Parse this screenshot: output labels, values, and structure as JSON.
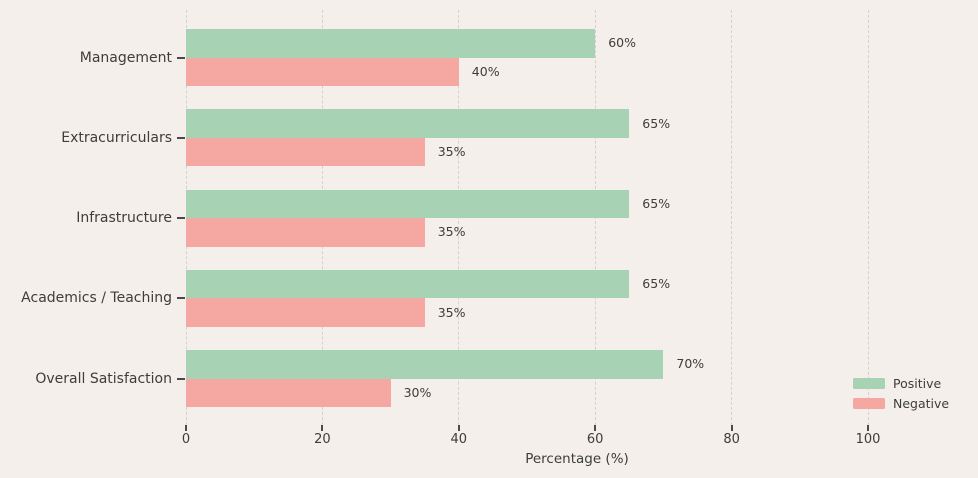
{
  "chart_data": {
    "type": "bar",
    "orientation": "horizontal",
    "categories": [
      "Management",
      "Extracurriculars",
      "Infrastructure",
      "Academics / Teaching",
      "Overall Satisfaction"
    ],
    "series": [
      {
        "name": "Positive",
        "color": "#a7d3b4",
        "values": [
          60,
          65,
          65,
          65,
          70
        ]
      },
      {
        "name": "Negative",
        "color": "#f5a7a2",
        "values": [
          40,
          35,
          35,
          35,
          30
        ]
      }
    ],
    "value_suffix": "%",
    "xlabel": "Percentage (%)",
    "x_ticks": [
      0,
      20,
      40,
      60,
      80,
      100
    ],
    "xlim": [
      0,
      114.7
    ],
    "grid": "vertical-dashed",
    "legend_position": "lower-right",
    "legend_entries": [
      "Positive",
      "Negative"
    ]
  },
  "colors": {
    "background": "#f4efeb",
    "grid": "#d4d0cb",
    "text": "#3d3d3d",
    "tick_mark": "#4a4a4a",
    "positive": "#a7d3b4",
    "negative": "#f5a7a2"
  }
}
